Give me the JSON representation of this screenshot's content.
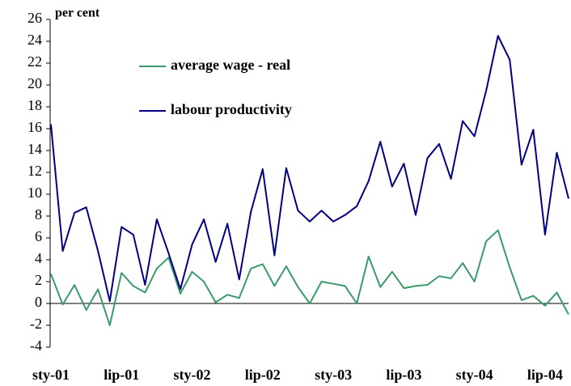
{
  "chart_data": {
    "type": "line",
    "y_label": "per cent",
    "categories": [
      "sty-01",
      null,
      null,
      null,
      null,
      null,
      "lip-01",
      null,
      null,
      null,
      null,
      null,
      "sty-02",
      null,
      null,
      null,
      null,
      null,
      "lip-02",
      null,
      null,
      null,
      null,
      null,
      "sty-03",
      null,
      null,
      null,
      null,
      null,
      "lip-03",
      null,
      null,
      null,
      null,
      null,
      "sty-04",
      null,
      null,
      null,
      null,
      null,
      "lip-04",
      null,
      null
    ],
    "series": [
      {
        "name": "average wage - real",
        "color": "#3a9a6a",
        "values": [
          2.7,
          -0.1,
          1.7,
          -0.6,
          1.3,
          -2.0,
          2.8,
          1.6,
          1.0,
          3.2,
          4.2,
          0.9,
          2.9,
          2.0,
          0.1,
          0.8,
          0.5,
          3.2,
          3.6,
          1.6,
          3.4,
          1.5,
          0.0,
          2.0,
          1.8,
          1.6,
          0.0,
          4.3,
          1.5,
          2.9,
          1.4,
          1.6,
          1.7,
          2.5,
          2.3,
          3.7,
          2.0,
          5.7,
          6.7,
          3.3,
          0.3,
          0.7,
          -0.2,
          1.0,
          -1.0
        ]
      },
      {
        "name": "labour productivity",
        "color": "#000080",
        "values": [
          16.4,
          4.8,
          8.3,
          8.8,
          4.8,
          0.2,
          7.0,
          6.3,
          1.7,
          7.7,
          4.6,
          1.3,
          5.4,
          7.7,
          3.8,
          7.3,
          2.2,
          8.4,
          12.3,
          4.4,
          12.4,
          8.5,
          7.5,
          8.5,
          7.5,
          8.1,
          8.9,
          11.2,
          14.8,
          10.7,
          12.8,
          8.1,
          13.3,
          14.6,
          11.4,
          16.7,
          15.3,
          19.5,
          24.5,
          22.3,
          12.7,
          15.9,
          6.3,
          13.8,
          9.6
        ]
      }
    ],
    "ylim": [
      -4,
      26
    ],
    "yticks": [
      -4,
      -2,
      0,
      2,
      4,
      6,
      8,
      10,
      12,
      14,
      16,
      18,
      20,
      22,
      24,
      26
    ]
  }
}
